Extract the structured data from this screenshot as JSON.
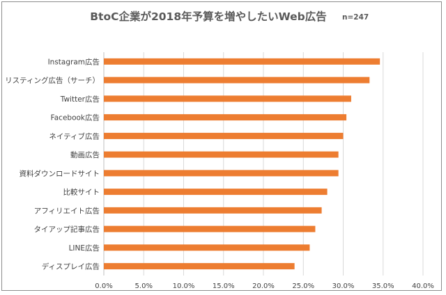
{
  "chart_data": {
    "type": "bar",
    "orientation": "horizontal",
    "title": "BtoC企業が2018年予算を増やしたいWeb広告",
    "subtitle": "n=247",
    "categories": [
      "Instagram広告",
      "リスティング広告（サーチ）",
      "Twitter広告",
      "Facebook広告",
      "ネイティブ広告",
      "動画広告",
      "資料ダウンロードサイト",
      "比較サイト",
      "アフィリエイト広告",
      "タイアップ記事広告",
      "LINE広告",
      "ディスプレイ広告"
    ],
    "values": [
      34.6,
      33.3,
      31.0,
      30.4,
      30.0,
      29.4,
      29.4,
      28.0,
      27.3,
      26.5,
      25.8,
      23.9
    ],
    "xlim": [
      0,
      40
    ],
    "xticks": [
      "0.0%",
      "5.0%",
      "10.0%",
      "15.0%",
      "20.0%",
      "25.0%",
      "30.0%",
      "35.0%",
      "40.0%"
    ],
    "grid": true,
    "bar_color": "#ed7d31"
  }
}
